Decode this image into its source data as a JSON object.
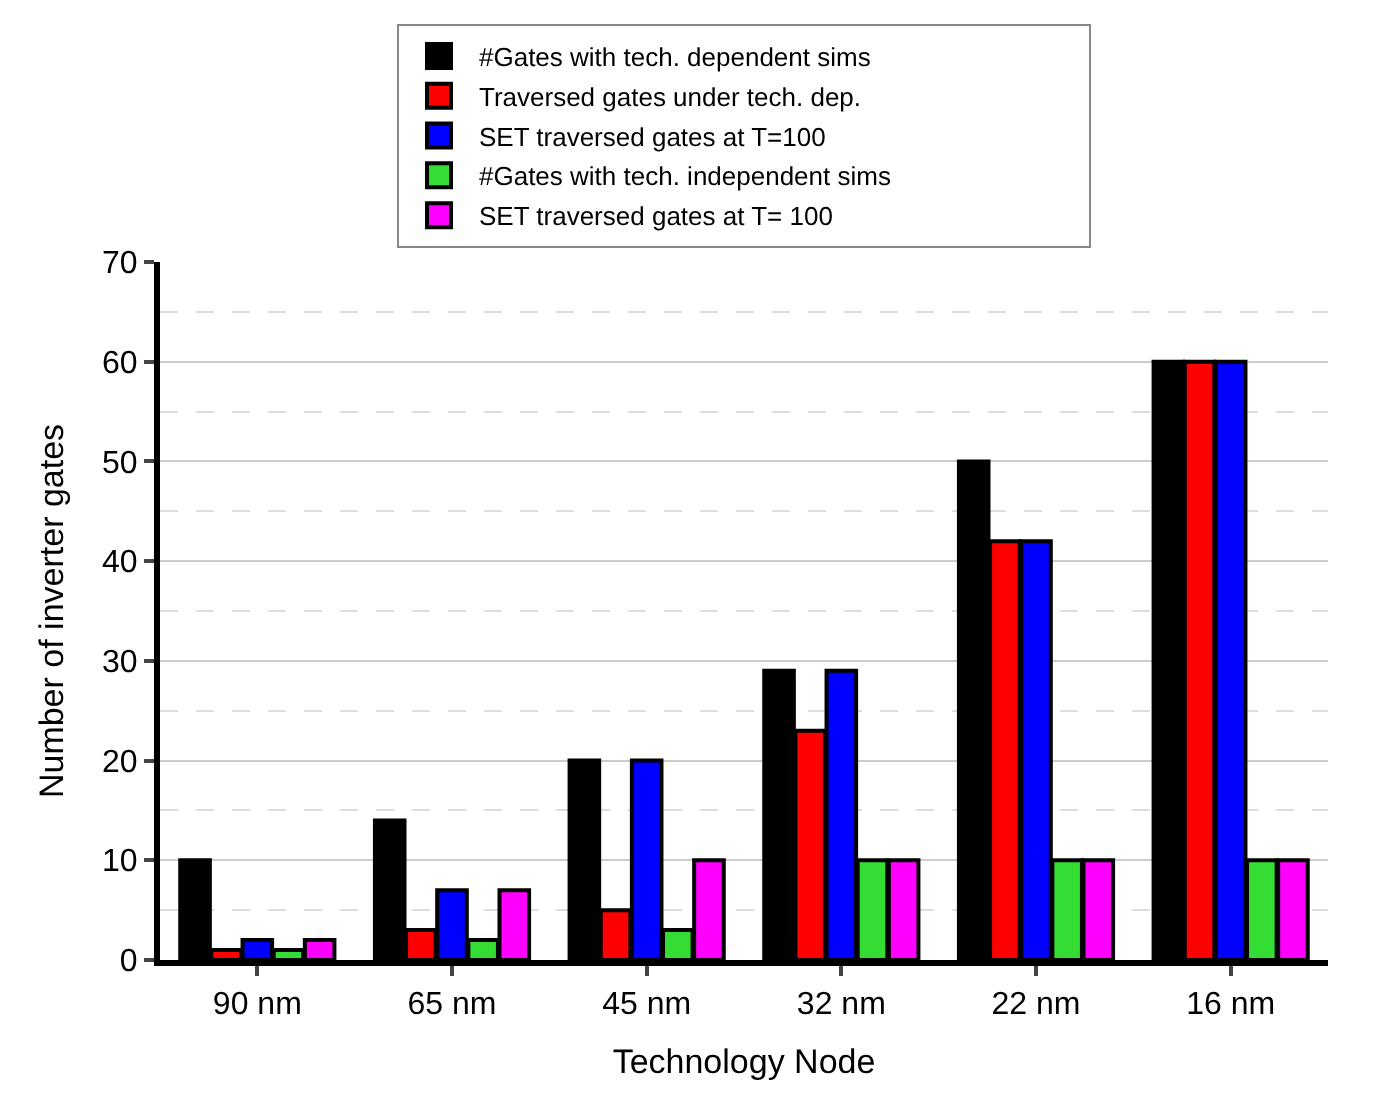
{
  "chart_data": {
    "type": "bar",
    "xlabel": "Technology Node",
    "ylabel": "Number of inverter gates",
    "categories": [
      "90 nm",
      "65 nm",
      "45 nm",
      "32 nm",
      "22 nm",
      "16 nm"
    ],
    "series": [
      {
        "name": "#Gates with tech. dependent sims",
        "color": "#000000",
        "values": [
          10,
          14,
          20,
          29,
          50,
          60
        ]
      },
      {
        "name": "Traversed gates under tech. dep.",
        "color": "#ff0000",
        "values": [
          1,
          3,
          5,
          23,
          42,
          60
        ]
      },
      {
        "name": "SET traversed gates at T=100",
        "color": "#0000ff",
        "values": [
          2,
          7,
          20,
          29,
          42,
          60
        ]
      },
      {
        "name": "#Gates with tech. independent sims",
        "color": "#33dd33",
        "values": [
          1,
          2,
          3,
          10,
          10,
          10
        ]
      },
      {
        "name": "SET traversed gates at T= 100",
        "color": "#ff00ff",
        "values": [
          2,
          7,
          10,
          10,
          10,
          10
        ]
      }
    ],
    "ylim": [
      0,
      70
    ],
    "yticks": [
      0,
      10,
      20,
      30,
      40,
      50,
      60,
      70
    ],
    "grid": "y",
    "legend": "top"
  }
}
